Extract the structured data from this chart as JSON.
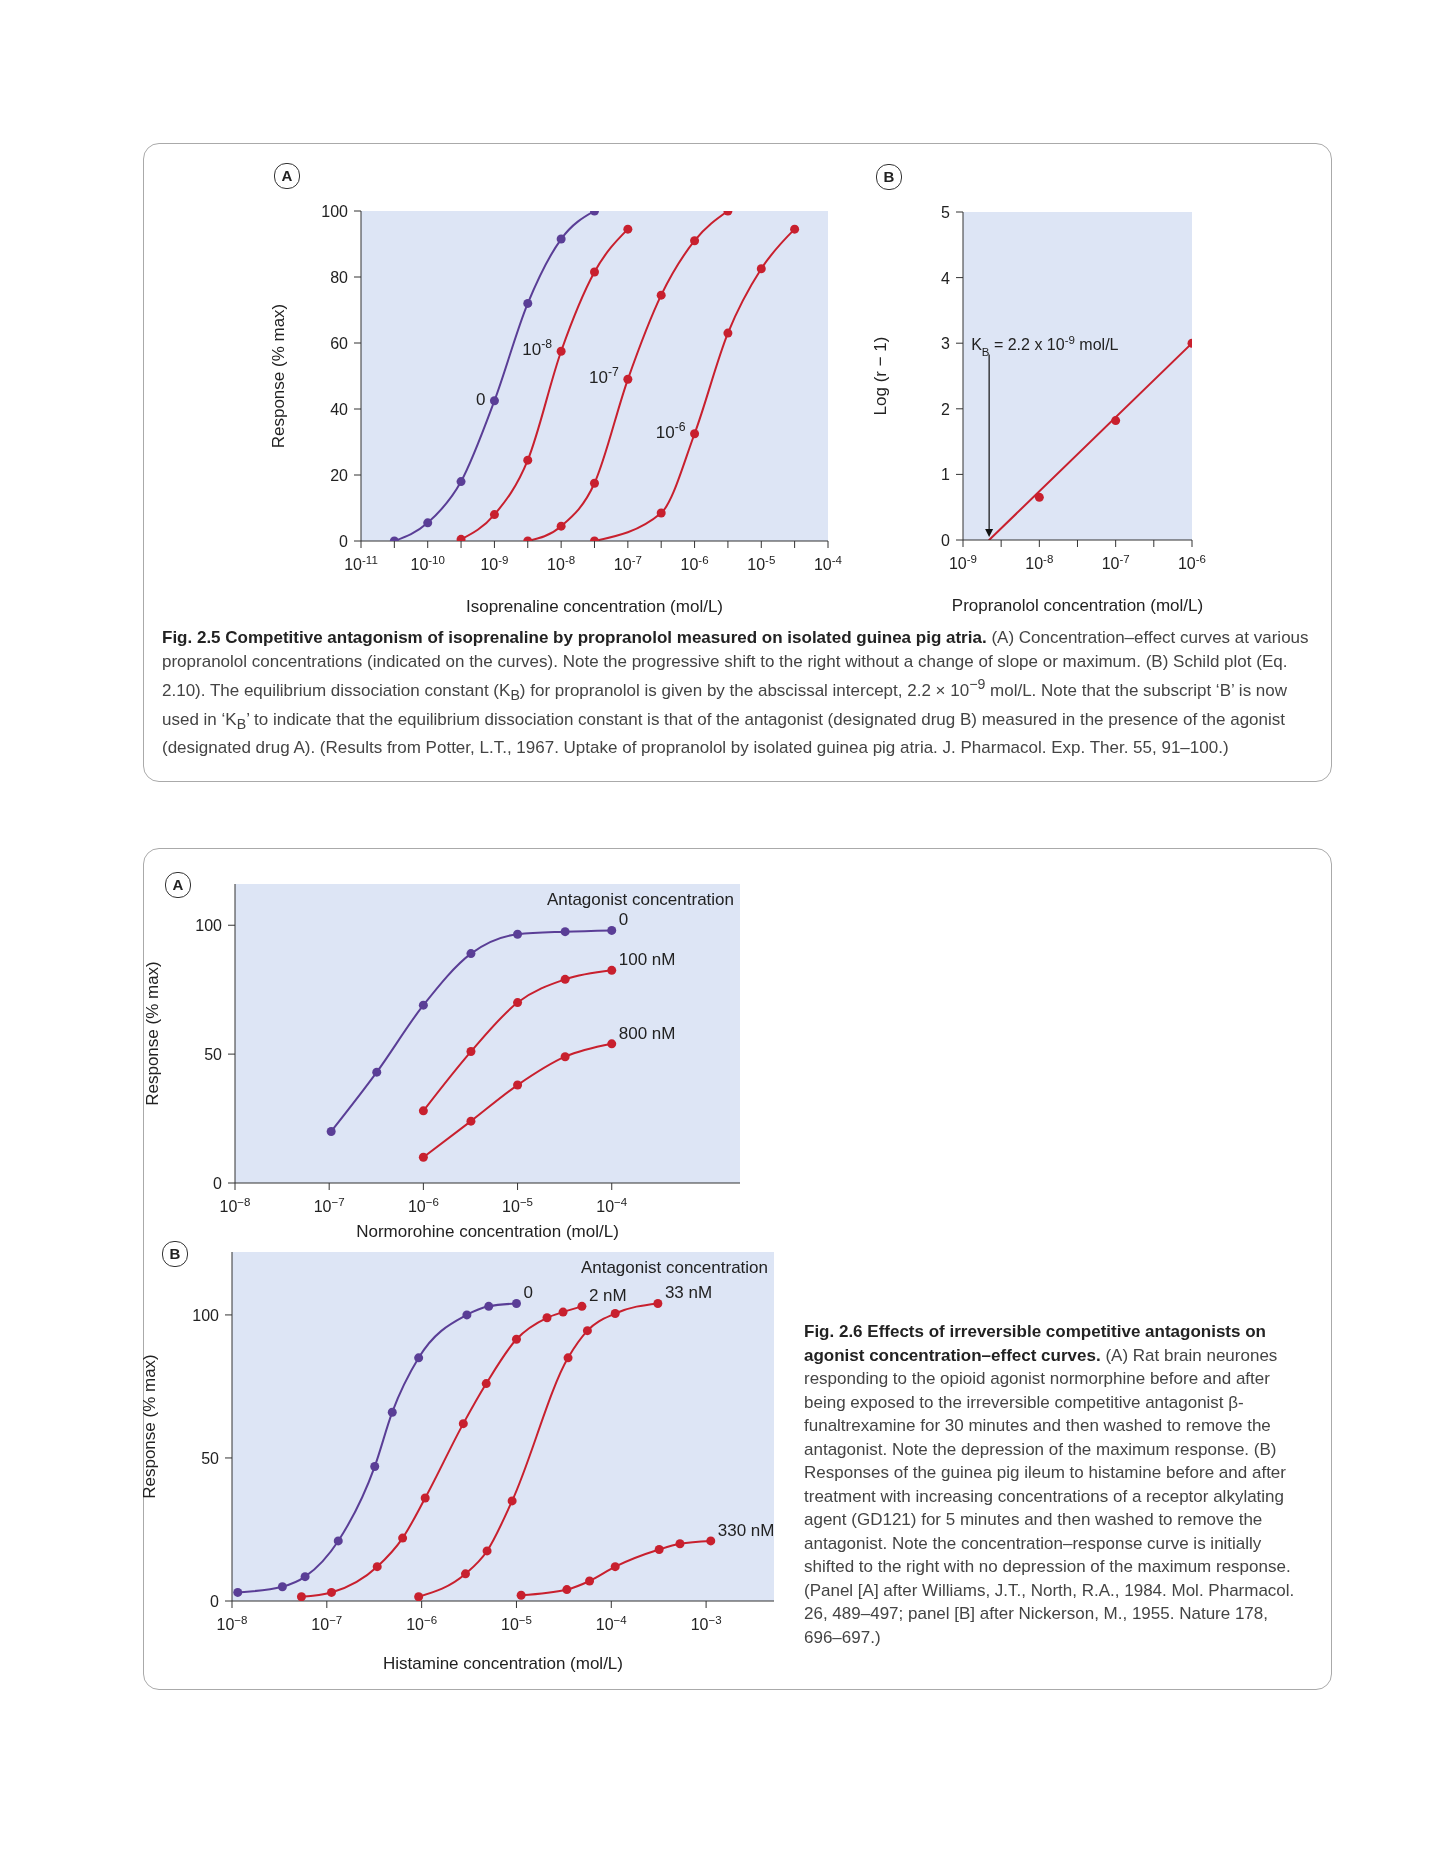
{
  "chart_data": [
    {
      "type": "line",
      "title": "A",
      "xlabel": "Isoprenaline concentration (mol/L)",
      "ylabel": "Response (% max)",
      "log": "x",
      "xlim": [
        1e-11,
        0.0001
      ],
      "xticks": [
        {
          "value": 1e-11,
          "label": "10$^{-11}$"
        },
        {
          "value": 3.16e-11,
          "label": null
        },
        {
          "value": 1e-10,
          "label": "10$^{-10}$"
        },
        {
          "value": 3.16e-10,
          "label": null
        },
        {
          "value": 1e-09,
          "label": "10$^{-9}$"
        },
        {
          "value": 3.16e-09,
          "label": null
        },
        {
          "value": 1e-08,
          "label": "10$^{-8}$"
        },
        {
          "value": 3.16e-08,
          "label": null
        },
        {
          "value": 1e-07,
          "label": "10$^{-7}$"
        },
        {
          "value": 3.16e-07,
          "label": null
        },
        {
          "value": 1e-06,
          "label": "10$^{-6}$"
        },
        {
          "value": 3.16e-06,
          "label": null
        },
        {
          "value": 1e-05,
          "label": "10$^{-5}$"
        },
        {
          "value": 3.16e-05,
          "label": null
        },
        {
          "value": 0.0001,
          "label": "10$^{-4}$"
        }
      ],
      "ylim": [
        0,
        100
      ],
      "yticks": [
        0,
        20,
        40,
        60,
        80,
        100
      ],
      "marker": "circle",
      "line_style": "solid",
      "series": [
        {
          "name": "0",
          "color": "#5a3e96",
          "x": [
            3.16e-11,
            1e-10,
            3.16e-10,
            1e-09,
            3.16e-09,
            1e-08,
            3.16e-08
          ],
          "values": [
            0,
            5.5,
            18,
            42.5,
            72,
            91.5,
            100
          ]
        },
        {
          "name": "10$^{-8}$",
          "color": "#c8202e",
          "x": [
            3.16e-10,
            1e-09,
            3.16e-09,
            1e-08,
            3.16e-08,
            1e-07
          ],
          "values": [
            0.5,
            8,
            24.5,
            57.5,
            81.5,
            94.5
          ]
        },
        {
          "name": "10$^{-7}$",
          "color": "#c8202e",
          "x": [
            3.16e-09,
            1e-08,
            3.16e-08,
            1e-07,
            3.16e-07,
            1e-06,
            3.16e-06
          ],
          "values": [
            0,
            4.5,
            17.5,
            49,
            74.5,
            91,
            100
          ]
        },
        {
          "name": "10$^{-6}$",
          "color": "#c8202e",
          "x": [
            3.16e-08,
            3.16e-07,
            1e-06,
            3.16e-06,
            1e-05,
            3.16e-05
          ],
          "values": [
            0,
            8.5,
            32.5,
            63,
            82.5,
            94.5
          ]
        }
      ]
    },
    {
      "type": "scatter",
      "title": "B",
      "xlabel": "Propranolol concentration (mol/L)",
      "ylabel": "Log (r − 1)",
      "log": "x",
      "xlim": [
        1e-09,
        1e-06
      ],
      "xticks": [
        {
          "value": 1e-09,
          "label": "10$^{-9}$"
        },
        {
          "value": 3.16e-09,
          "label": null
        },
        {
          "value": 1e-08,
          "label": "10$^{-8}$"
        },
        {
          "value": 3.16e-08,
          "label": null
        },
        {
          "value": 1e-07,
          "label": "10$^{-7}$"
        },
        {
          "value": 3.16e-07,
          "label": null
        },
        {
          "value": 1e-06,
          "label": "10$^{-6}$"
        }
      ],
      "ylim": [
        0,
        5
      ],
      "yticks": [
        0,
        1,
        2,
        3,
        4,
        5
      ],
      "marker": "circle",
      "line_style": "solid",
      "series": [
        {
          "color": "#c8202e",
          "x": [
            1e-08,
            1e-07,
            1e-06
          ],
          "values": [
            0.65,
            1.82,
            3.0
          ]
        },
        {
          "type": "line",
          "marker": "none",
          "color": "#c8202e",
          "x": [
            2.2e-09,
            1e-06
          ],
          "values": [
            0,
            3.0
          ]
        }
      ],
      "annotations": [
        "K$_{B}$ = 2.2 x 10$^{-9}$ mol/L",
        "Fig. 2.5   Competitive antagonism of isoprenaline by propranolol measured on isolated guinea pig atria.",
        "(A) Concentration–effect curves at various propranolol concentrations (indicated on the curves). Note the progressive shift to the right without a change of slope or maximum. (B) Schild plot (Eq. 2.10). The equilibrium dissociation constant (K$_{B}$) for propranolol is given by the abscissal intercept, 2.2 × 10$^{−9}$ mol/L. Note that the subscript ‘B’ is now used in ‘K$_{B}$’ to indicate that the equilibrium dissociation constant is that of the antagonist (designated drug B) measured in the presence of the agonist (designated drug A). (Results from Potter, L.T., 1967. Uptake of propranolol by isolated guinea pig atria. J. Pharmacol. Exp. Ther. 55, 91–100.)"
      ]
    },
    {
      "type": "line",
      "title": "A",
      "legend_title": "Antagonist concentration",
      "xlabel": "Normorohine concentration (mol/L)",
      "ylabel": "Response (% max)",
      "log": "x",
      "xlim": [
        1e-08,
        0.0023
      ],
      "xticks": [
        {
          "value": 1e-08,
          "label": "10$^{−8}$"
        },
        {
          "value": 1e-07,
          "label": "10$^{−7}$"
        },
        {
          "value": 1e-06,
          "label": "10$^{−6}$"
        },
        {
          "value": 1e-05,
          "label": "10$^{−5}$"
        },
        {
          "value": 0.0001,
          "label": "10$^{−4}$"
        }
      ],
      "ylim": [
        0,
        116
      ],
      "yticks": [
        0,
        50,
        100
      ],
      "marker": "circle",
      "line_style": "solid",
      "series": [
        {
          "name": "0",
          "color": "#5a3e96",
          "x": [
            1.05e-07,
            3.2e-07,
            1e-06,
            3.2e-06,
            1e-05,
            3.2e-05,
            0.0001
          ],
          "values": [
            20,
            43,
            69,
            89,
            96.5,
            97.5,
            98
          ]
        },
        {
          "name": "100 nM",
          "color": "#c8202e",
          "x": [
            1e-06,
            3.2e-06,
            1e-05,
            3.2e-05,
            0.0001
          ],
          "values": [
            28,
            51,
            70,
            79,
            82.5
          ]
        },
        {
          "name": "800 nM",
          "color": "#c8202e",
          "x": [
            1e-06,
            3.2e-06,
            1e-05,
            3.2e-05,
            0.0001
          ],
          "values": [
            10,
            24,
            38,
            49,
            54
          ]
        }
      ]
    },
    {
      "type": "line",
      "title": "B",
      "legend_title": "Antagonist concentration",
      "xlabel": "Histamine concentration (mol/L)",
      "ylabel": "Response (% max)",
      "log": "x",
      "xlim": [
        1e-08,
        0.0052
      ],
      "xticks": [
        {
          "value": 1e-08,
          "label": "10$^{−8}$"
        },
        {
          "value": 1e-07,
          "label": "10$^{−7}$"
        },
        {
          "value": 1e-06,
          "label": "10$^{−6}$"
        },
        {
          "value": 1e-05,
          "label": "10$^{−5}$"
        },
        {
          "value": 0.0001,
          "label": "10$^{−4}$"
        },
        {
          "value": 0.001,
          "label": "10$^{−3}$"
        }
      ],
      "ylim": [
        0,
        122
      ],
      "yticks": [
        0,
        50,
        100
      ],
      "marker": "circle",
      "line_style": "solid",
      "series": [
        {
          "name": "0",
          "color": "#5a3e96",
          "x": [
            1.15e-08,
            3.4e-08,
            5.9e-08,
            1.32e-07,
            3.2e-07,
            4.9e-07,
            9.3e-07,
            3e-06,
            5.1e-06,
            1e-05
          ],
          "values": [
            3,
            5,
            8.5,
            21,
            47,
            66,
            85,
            100,
            103,
            104
          ]
        },
        {
          "name": "2 nM",
          "color": "#c8202e",
          "x": [
            5.4e-08,
            1.12e-07,
            3.4e-07,
            6.3e-07,
            1.09e-06,
            2.75e-06,
            4.8e-06,
            1e-05,
            2.1e-05,
            3.1e-05,
            4.9e-05
          ],
          "values": [
            1.5,
            3,
            12,
            22,
            36,
            62,
            76,
            91.5,
            99,
            101,
            103
          ]
        },
        {
          "name": "33 nM",
          "color": "#c8202e",
          "x": [
            9.3e-07,
            2.9e-06,
            4.9e-06,
            9e-06,
            3.5e-05,
            5.6e-05,
            0.00011,
            0.00031
          ],
          "values": [
            1.5,
            9.5,
            17.5,
            35,
            85,
            94.5,
            100.5,
            104
          ]
        },
        {
          "name": "330 nM",
          "color": "#c8202e",
          "x": [
            1.12e-05,
            3.4e-05,
            5.9e-05,
            0.00011,
            0.00032,
            0.00053,
            0.00112
          ],
          "values": [
            2,
            4,
            7,
            12,
            18,
            20,
            21
          ]
        }
      ],
      "annotations": [
        "Fig. 2.6   Effects of irreversible competitive antagonists on agonist concentration–effect curves.",
        "(A) Rat brain neurones responding to the opioid agonist normorphine before and after being exposed to the irreversible competitive antagonist β-funaltrexamine for 30 minutes and then washed to remove the antagonist. Note the depression of the maximum response. (B) Responses of the guinea pig ileum to histamine before and after treatment with increasing concentrations of a receptor alkylating agent (GD121) for 5 minutes and then washed to remove the antagonist. Note the concentration–response curve is initially shifted to the right with no depression of the maximum response. (Panel [A] after Williams, J.T., North, R.A., 1984. Mol. Pharmacol. 26, 489–497; panel [B] after Nickerson, M., 1955. Nature 178, 696–697.)"
      ]
    }
  ]
}
